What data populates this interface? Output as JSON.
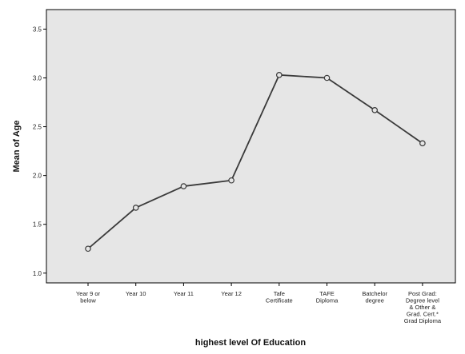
{
  "chart_data": {
    "type": "line",
    "title": "",
    "xlabel": "highest level Of Education",
    "ylabel": "Mean of Age",
    "categories": [
      [
        "Year 9 or",
        "below"
      ],
      [
        "Year 10"
      ],
      [
        "Year 11"
      ],
      [
        "Year 12"
      ],
      [
        "Tafe",
        "Certificate"
      ],
      [
        "TAFE",
        "Diploma"
      ],
      [
        "Batchelor",
        "degree"
      ],
      [
        "Post Grad:",
        "Degree level",
        "& Other &",
        "Grad. Cert.*",
        "Grad Diploma"
      ]
    ],
    "series": [
      {
        "values": [
          1.25,
          1.67,
          1.89,
          1.95,
          3.03,
          3.0,
          2.67,
          2.33
        ]
      }
    ],
    "ylim": [
      0.9,
      3.7
    ],
    "yticks": [
      "1.0",
      "1.5",
      "2.0",
      "2.5",
      "3.0",
      "3.5"
    ],
    "grid": false,
    "legend": "none",
    "colors": {
      "plot_background": "#e6e6e6",
      "line": "#3a3a3a",
      "marker": "#3a3a3a",
      "axes": "#000000"
    }
  }
}
